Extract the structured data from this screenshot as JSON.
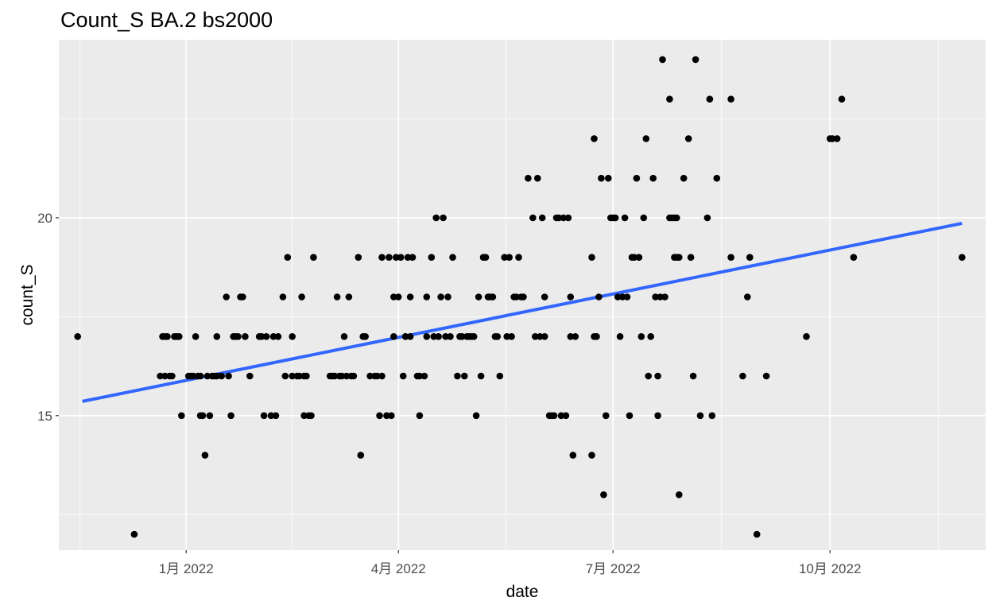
{
  "chart_data": {
    "type": "scatter",
    "title": "Count_S BA.2 bs2000",
    "xlabel": "date",
    "ylabel": "count_S",
    "x_ticks": [
      {
        "value": "2022-01-01",
        "label": "1月 2022"
      },
      {
        "value": "2022-04-01",
        "label": "4月 2022"
      },
      {
        "value": "2022-07-01",
        "label": "7月 2022"
      },
      {
        "value": "2022-10-01",
        "label": "10月 2022"
      }
    ],
    "y_ticks": [
      15,
      20
    ],
    "xlim": [
      "2021-11-08",
      "2022-12-06"
    ],
    "ylim": [
      11.6,
      24.5
    ],
    "grid": true,
    "background_color": "#ebebeb",
    "point_color": "#000000",
    "trend_color": "#3366ff",
    "trend_line": {
      "x": [
        "2021-11-18",
        "2022-11-26"
      ],
      "y": [
        15.36,
        19.86
      ]
    },
    "points": [
      {
        "x": "2021-11-16",
        "y": 17
      },
      {
        "x": "2021-12-10",
        "y": 12
      },
      {
        "x": "2021-12-21",
        "y": 16
      },
      {
        "x": "2021-12-22",
        "y": 17
      },
      {
        "x": "2021-12-23",
        "y": 16
      },
      {
        "x": "2021-12-23",
        "y": 17
      },
      {
        "x": "2021-12-24",
        "y": 17
      },
      {
        "x": "2021-12-25",
        "y": 16
      },
      {
        "x": "2021-12-26",
        "y": 16
      },
      {
        "x": "2021-12-27",
        "y": 17
      },
      {
        "x": "2021-12-28",
        "y": 17
      },
      {
        "x": "2021-12-29",
        "y": 17
      },
      {
        "x": "2021-12-30",
        "y": 15
      },
      {
        "x": "2022-01-02",
        "y": 16
      },
      {
        "x": "2022-01-03",
        "y": 16
      },
      {
        "x": "2022-01-04",
        "y": 16
      },
      {
        "x": "2022-01-05",
        "y": 17
      },
      {
        "x": "2022-01-06",
        "y": 16
      },
      {
        "x": "2022-01-07",
        "y": 16
      },
      {
        "x": "2022-01-07",
        "y": 15
      },
      {
        "x": "2022-01-08",
        "y": 15
      },
      {
        "x": "2022-01-09",
        "y": 14
      },
      {
        "x": "2022-01-10",
        "y": 16
      },
      {
        "x": "2022-01-11",
        "y": 15
      },
      {
        "x": "2022-01-12",
        "y": 16
      },
      {
        "x": "2022-01-13",
        "y": 16
      },
      {
        "x": "2022-01-14",
        "y": 16
      },
      {
        "x": "2022-01-14",
        "y": 17
      },
      {
        "x": "2022-01-16",
        "y": 16
      },
      {
        "x": "2022-01-18",
        "y": 18
      },
      {
        "x": "2022-01-19",
        "y": 16
      },
      {
        "x": "2022-01-20",
        "y": 15
      },
      {
        "x": "2022-01-21",
        "y": 17
      },
      {
        "x": "2022-01-22",
        "y": 17
      },
      {
        "x": "2022-01-23",
        "y": 17
      },
      {
        "x": "2022-01-24",
        "y": 18
      },
      {
        "x": "2022-01-25",
        "y": 18
      },
      {
        "x": "2022-01-26",
        "y": 17
      },
      {
        "x": "2022-01-28",
        "y": 16
      },
      {
        "x": "2022-02-01",
        "y": 17
      },
      {
        "x": "2022-02-02",
        "y": 17
      },
      {
        "x": "2022-02-03",
        "y": 15
      },
      {
        "x": "2022-02-04",
        "y": 17
      },
      {
        "x": "2022-02-06",
        "y": 15
      },
      {
        "x": "2022-02-07",
        "y": 17
      },
      {
        "x": "2022-02-08",
        "y": 15
      },
      {
        "x": "2022-02-09",
        "y": 17
      },
      {
        "x": "2022-02-11",
        "y": 18
      },
      {
        "x": "2022-02-12",
        "y": 16
      },
      {
        "x": "2022-02-13",
        "y": 19
      },
      {
        "x": "2022-02-15",
        "y": 17
      },
      {
        "x": "2022-02-15",
        "y": 16
      },
      {
        "x": "2022-02-17",
        "y": 16
      },
      {
        "x": "2022-02-18",
        "y": 16
      },
      {
        "x": "2022-02-19",
        "y": 18
      },
      {
        "x": "2022-02-20",
        "y": 16
      },
      {
        "x": "2022-02-20",
        "y": 15
      },
      {
        "x": "2022-02-21",
        "y": 16
      },
      {
        "x": "2022-02-22",
        "y": 15
      },
      {
        "x": "2022-02-23",
        "y": 15
      },
      {
        "x": "2022-02-24",
        "y": 19
      },
      {
        "x": "2022-03-03",
        "y": 16
      },
      {
        "x": "2022-03-04",
        "y": 16
      },
      {
        "x": "2022-03-05",
        "y": 16
      },
      {
        "x": "2022-03-06",
        "y": 18
      },
      {
        "x": "2022-03-07",
        "y": 16
      },
      {
        "x": "2022-03-08",
        "y": 16
      },
      {
        "x": "2022-03-09",
        "y": 17
      },
      {
        "x": "2022-03-10",
        "y": 16
      },
      {
        "x": "2022-03-11",
        "y": 18
      },
      {
        "x": "2022-03-12",
        "y": 16
      },
      {
        "x": "2022-03-13",
        "y": 16
      },
      {
        "x": "2022-03-15",
        "y": 19
      },
      {
        "x": "2022-03-16",
        "y": 14
      },
      {
        "x": "2022-03-17",
        "y": 17
      },
      {
        "x": "2022-03-18",
        "y": 17
      },
      {
        "x": "2022-03-20",
        "y": 16
      },
      {
        "x": "2022-03-22",
        "y": 16
      },
      {
        "x": "2022-03-23",
        "y": 16
      },
      {
        "x": "2022-03-24",
        "y": 15
      },
      {
        "x": "2022-03-25",
        "y": 19
      },
      {
        "x": "2022-03-25",
        "y": 16
      },
      {
        "x": "2022-03-27",
        "y": 15
      },
      {
        "x": "2022-03-28",
        "y": 19
      },
      {
        "x": "2022-03-29",
        "y": 15
      },
      {
        "x": "2022-03-30",
        "y": 18
      },
      {
        "x": "2022-03-30",
        "y": 17
      },
      {
        "x": "2022-03-31",
        "y": 19
      },
      {
        "x": "2022-04-01",
        "y": 18
      },
      {
        "x": "2022-04-02",
        "y": 19
      },
      {
        "x": "2022-04-03",
        "y": 16
      },
      {
        "x": "2022-04-04",
        "y": 17
      },
      {
        "x": "2022-04-05",
        "y": 19
      },
      {
        "x": "2022-04-06",
        "y": 17
      },
      {
        "x": "2022-04-06",
        "y": 18
      },
      {
        "x": "2022-04-07",
        "y": 19
      },
      {
        "x": "2022-04-09",
        "y": 16
      },
      {
        "x": "2022-04-10",
        "y": 15
      },
      {
        "x": "2022-04-10",
        "y": 16
      },
      {
        "x": "2022-04-12",
        "y": 16
      },
      {
        "x": "2022-04-13",
        "y": 18
      },
      {
        "x": "2022-04-13",
        "y": 17
      },
      {
        "x": "2022-04-15",
        "y": 19
      },
      {
        "x": "2022-04-16",
        "y": 17
      },
      {
        "x": "2022-04-17",
        "y": 20
      },
      {
        "x": "2022-04-18",
        "y": 17
      },
      {
        "x": "2022-04-19",
        "y": 18
      },
      {
        "x": "2022-04-20",
        "y": 20
      },
      {
        "x": "2022-04-21",
        "y": 17
      },
      {
        "x": "2022-04-22",
        "y": 18
      },
      {
        "x": "2022-04-23",
        "y": 17
      },
      {
        "x": "2022-04-24",
        "y": 19
      },
      {
        "x": "2022-04-26",
        "y": 16
      },
      {
        "x": "2022-04-27",
        "y": 17
      },
      {
        "x": "2022-04-28",
        "y": 17
      },
      {
        "x": "2022-04-29",
        "y": 16
      },
      {
        "x": "2022-04-30",
        "y": 17
      },
      {
        "x": "2022-05-01",
        "y": 17
      },
      {
        "x": "2022-05-02",
        "y": 17
      },
      {
        "x": "2022-05-03",
        "y": 17
      },
      {
        "x": "2022-05-04",
        "y": 15
      },
      {
        "x": "2022-05-05",
        "y": 18
      },
      {
        "x": "2022-05-06",
        "y": 16
      },
      {
        "x": "2022-05-07",
        "y": 19
      },
      {
        "x": "2022-05-08",
        "y": 19
      },
      {
        "x": "2022-05-09",
        "y": 18
      },
      {
        "x": "2022-05-10",
        "y": 18
      },
      {
        "x": "2022-05-11",
        "y": 18
      },
      {
        "x": "2022-05-12",
        "y": 17
      },
      {
        "x": "2022-05-13",
        "y": 17
      },
      {
        "x": "2022-05-14",
        "y": 16
      },
      {
        "x": "2022-05-16",
        "y": 19
      },
      {
        "x": "2022-05-17",
        "y": 17
      },
      {
        "x": "2022-05-18",
        "y": 19
      },
      {
        "x": "2022-05-19",
        "y": 17
      },
      {
        "x": "2022-05-20",
        "y": 18
      },
      {
        "x": "2022-05-21",
        "y": 18
      },
      {
        "x": "2022-05-22",
        "y": 19
      },
      {
        "x": "2022-05-23",
        "y": 18
      },
      {
        "x": "2022-05-24",
        "y": 18
      },
      {
        "x": "2022-05-26",
        "y": 21
      },
      {
        "x": "2022-05-28",
        "y": 20
      },
      {
        "x": "2022-05-29",
        "y": 17
      },
      {
        "x": "2022-05-30",
        "y": 21
      },
      {
        "x": "2022-05-31",
        "y": 17
      },
      {
        "x": "2022-06-01",
        "y": 20
      },
      {
        "x": "2022-06-02",
        "y": 17
      },
      {
        "x": "2022-06-02",
        "y": 18
      },
      {
        "x": "2022-06-04",
        "y": 15
      },
      {
        "x": "2022-06-05",
        "y": 15
      },
      {
        "x": "2022-06-06",
        "y": 15
      },
      {
        "x": "2022-06-07",
        "y": 20
      },
      {
        "x": "2022-06-08",
        "y": 20
      },
      {
        "x": "2022-06-09",
        "y": 15
      },
      {
        "x": "2022-06-10",
        "y": 20
      },
      {
        "x": "2022-06-11",
        "y": 15
      },
      {
        "x": "2022-06-12",
        "y": 20
      },
      {
        "x": "2022-06-13",
        "y": 17
      },
      {
        "x": "2022-06-13",
        "y": 18
      },
      {
        "x": "2022-06-14",
        "y": 14
      },
      {
        "x": "2022-06-15",
        "y": 17
      },
      {
        "x": "2022-06-22",
        "y": 14
      },
      {
        "x": "2022-06-22",
        "y": 19
      },
      {
        "x": "2022-06-23",
        "y": 17
      },
      {
        "x": "2022-06-23",
        "y": 22
      },
      {
        "x": "2022-06-24",
        "y": 17
      },
      {
        "x": "2022-06-25",
        "y": 18
      },
      {
        "x": "2022-06-26",
        "y": 21
      },
      {
        "x": "2022-06-27",
        "y": 13
      },
      {
        "x": "2022-06-28",
        "y": 15
      },
      {
        "x": "2022-06-29",
        "y": 21
      },
      {
        "x": "2022-06-30",
        "y": 20
      },
      {
        "x": "2022-07-01",
        "y": 20
      },
      {
        "x": "2022-07-02",
        "y": 20
      },
      {
        "x": "2022-07-03",
        "y": 18
      },
      {
        "x": "2022-07-04",
        "y": 17
      },
      {
        "x": "2022-07-05",
        "y": 18
      },
      {
        "x": "2022-07-06",
        "y": 20
      },
      {
        "x": "2022-07-07",
        "y": 18
      },
      {
        "x": "2022-07-08",
        "y": 15
      },
      {
        "x": "2022-07-09",
        "y": 19
      },
      {
        "x": "2022-07-10",
        "y": 19
      },
      {
        "x": "2022-07-11",
        "y": 21
      },
      {
        "x": "2022-07-12",
        "y": 19
      },
      {
        "x": "2022-07-13",
        "y": 17
      },
      {
        "x": "2022-07-14",
        "y": 20
      },
      {
        "x": "2022-07-15",
        "y": 22
      },
      {
        "x": "2022-07-16",
        "y": 16
      },
      {
        "x": "2022-07-17",
        "y": 17
      },
      {
        "x": "2022-07-18",
        "y": 21
      },
      {
        "x": "2022-07-19",
        "y": 18
      },
      {
        "x": "2022-07-20",
        "y": 15
      },
      {
        "x": "2022-07-20",
        "y": 16
      },
      {
        "x": "2022-07-21",
        "y": 18
      },
      {
        "x": "2022-07-22",
        "y": 24
      },
      {
        "x": "2022-07-23",
        "y": 18
      },
      {
        "x": "2022-07-25",
        "y": 23
      },
      {
        "x": "2022-07-25",
        "y": 20
      },
      {
        "x": "2022-07-26",
        "y": 20
      },
      {
        "x": "2022-07-27",
        "y": 20
      },
      {
        "x": "2022-07-27",
        "y": 19
      },
      {
        "x": "2022-07-28",
        "y": 20
      },
      {
        "x": "2022-07-28",
        "y": 19
      },
      {
        "x": "2022-07-29",
        "y": 19
      },
      {
        "x": "2022-07-29",
        "y": 13
      },
      {
        "x": "2022-07-31",
        "y": 21
      },
      {
        "x": "2022-08-02",
        "y": 22
      },
      {
        "x": "2022-08-03",
        "y": 19
      },
      {
        "x": "2022-08-04",
        "y": 16
      },
      {
        "x": "2022-08-05",
        "y": 24
      },
      {
        "x": "2022-08-07",
        "y": 15
      },
      {
        "x": "2022-08-10",
        "y": 20
      },
      {
        "x": "2022-08-11",
        "y": 23
      },
      {
        "x": "2022-08-12",
        "y": 15
      },
      {
        "x": "2022-08-14",
        "y": 21
      },
      {
        "x": "2022-08-20",
        "y": 23
      },
      {
        "x": "2022-08-20",
        "y": 19
      },
      {
        "x": "2022-08-25",
        "y": 16
      },
      {
        "x": "2022-08-27",
        "y": 18
      },
      {
        "x": "2022-08-28",
        "y": 19
      },
      {
        "x": "2022-08-31",
        "y": 12
      },
      {
        "x": "2022-09-04",
        "y": 16
      },
      {
        "x": "2022-09-21",
        "y": 17
      },
      {
        "x": "2022-10-01",
        "y": 22
      },
      {
        "x": "2022-10-02",
        "y": 22
      },
      {
        "x": "2022-10-04",
        "y": 22
      },
      {
        "x": "2022-10-06",
        "y": 23
      },
      {
        "x": "2022-10-11",
        "y": 19
      },
      {
        "x": "2022-11-26",
        "y": 19
      }
    ]
  }
}
